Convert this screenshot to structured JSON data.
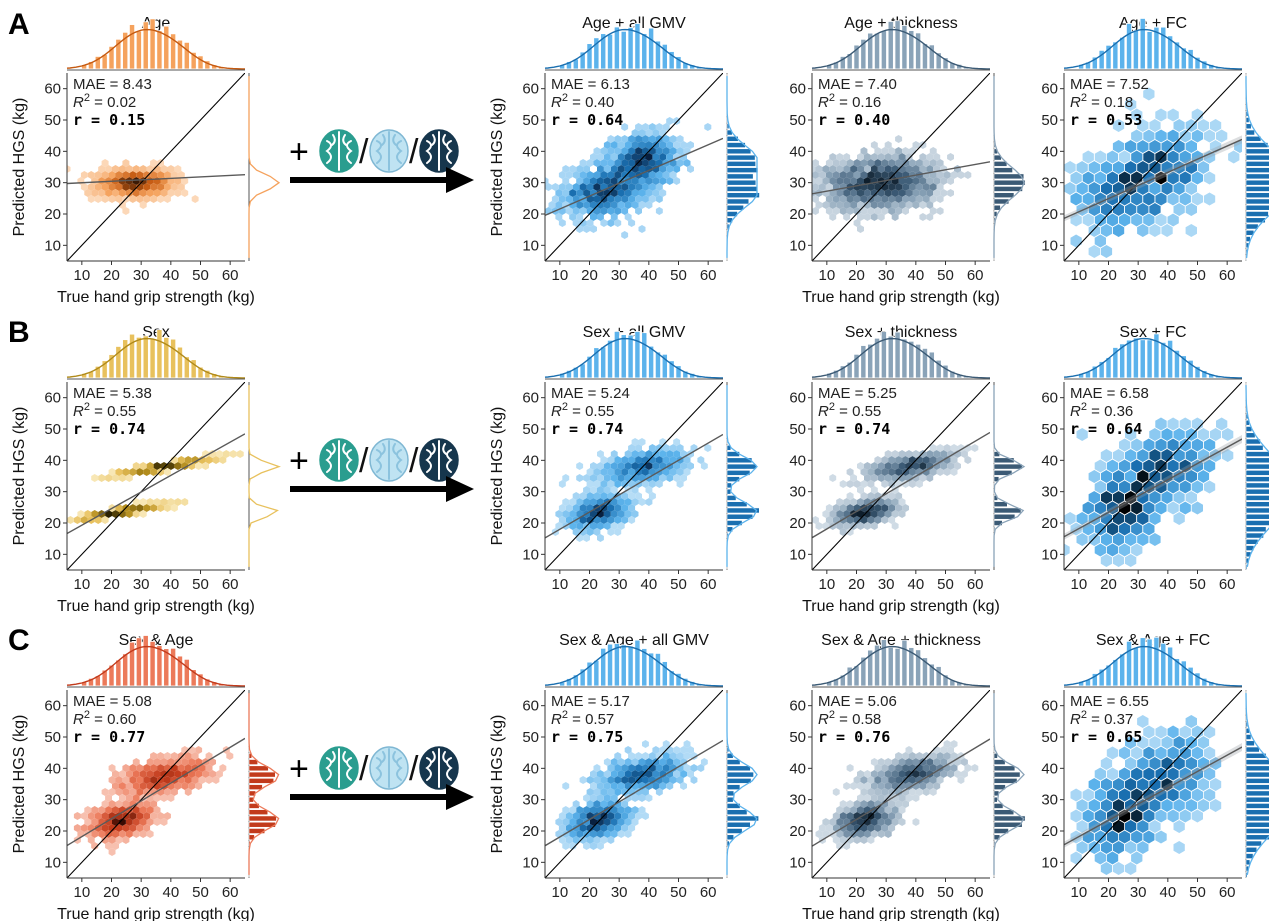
{
  "figure": {
    "panel_letters": [
      "A",
      "B",
      "C"
    ],
    "x_axis_label": "True hand grip strength (kg)",
    "y_axis_label": "Predicted HGS (kg)",
    "tick_values": [
      10,
      20,
      30,
      40,
      50,
      60
    ],
    "stat_labels": {
      "mae": "MAE = ",
      "r2_sym": "R",
      "r2_sup": "2",
      "r2_eq": " = ",
      "r": "r = "
    },
    "transition": {
      "plus": "+",
      "slash": "/"
    },
    "brain_icons": [
      "brain-icon-gmv",
      "brain-icon-thickness",
      "brain-icon-fc"
    ]
  },
  "chart_data": [
    {
      "type": "scatter",
      "title": "Age",
      "row": "A",
      "palette": "orange",
      "xlabel": "True hand grip strength (kg)",
      "ylabel": "Predicted HGS (kg)",
      "xlim": [
        5,
        65
      ],
      "ylim": [
        5,
        65
      ],
      "mae": "8.43",
      "r2": "0.02",
      "r": "0.15",
      "fit": {
        "slope": 0.047,
        "intercept": 29.5
      },
      "clusters": [
        [
          28,
          30,
          6,
          2
        ]
      ],
      "density": "tight",
      "colors": [
        "#fde4cc",
        "#f5a25d",
        "#c55a11",
        "#3b1a05"
      ]
    },
    {
      "type": "scatter",
      "title": "Age + all GMV",
      "row": "A",
      "palette": "blue",
      "xlabel": "",
      "ylabel": "Predicted HGS (kg)",
      "xlim": [
        5,
        65
      ],
      "ylim": [
        5,
        65
      ],
      "mae": "6.13",
      "r2": "0.40",
      "r": "0.64",
      "fit": {
        "slope": 0.41,
        "intercept": 17.5
      },
      "clusters": [
        [
          25,
          27,
          7,
          4
        ],
        [
          38,
          37,
          6,
          4
        ]
      ],
      "density": "hex",
      "colors": [
        "#d7ecfa",
        "#5cb3ec",
        "#1a6fb0",
        "#082040"
      ]
    },
    {
      "type": "scatter",
      "title": "Age + thickness",
      "row": "A",
      "palette": "navy",
      "xlabel": "True hand grip strength (kg)",
      "ylabel": "",
      "xlim": [
        5,
        65
      ],
      "ylim": [
        5,
        65
      ],
      "mae": "7.40",
      "r2": "0.16",
      "r": "0.40",
      "fit": {
        "slope": 0.17,
        "intercept": 25.6
      },
      "clusters": [
        [
          28,
          30,
          9,
          4
        ]
      ],
      "density": "hex",
      "colors": [
        "#e6edf3",
        "#8aa3b8",
        "#3b5a75",
        "#0e1e2c"
      ]
    },
    {
      "type": "scatter",
      "title": "Age + FC",
      "row": "A",
      "palette": "blue",
      "xlabel": "",
      "ylabel": "",
      "xlim": [
        5,
        65
      ],
      "ylim": [
        5,
        65
      ],
      "mae": "7.52",
      "r2": "0.18",
      "r": "0.53",
      "fit": {
        "slope": 0.42,
        "intercept": 16.5
      },
      "clusters": [
        [
          25,
          26,
          8,
          6
        ],
        [
          38,
          35,
          8,
          6
        ]
      ],
      "density": "hexbig",
      "colors": [
        "#d7ecfa",
        "#5cb3ec",
        "#1a6fb0",
        "#000000"
      ]
    },
    {
      "type": "scatter",
      "title": "Sex",
      "row": "B",
      "palette": "yellow",
      "xlabel": "True hand grip strength (kg)",
      "ylabel": "Predicted HGS (kg)",
      "xlim": [
        5,
        65
      ],
      "ylim": [
        5,
        65
      ],
      "mae": "5.38",
      "r2": "0.55",
      "r": "0.74",
      "fit": {
        "slope": 0.53,
        "intercept": 14.0
      },
      "clusters": [
        [
          23,
          23.5,
          7,
          0.4
        ],
        [
          38,
          38,
          8,
          0.4
        ]
      ],
      "density": "tight",
      "colors": [
        "#fbefc9",
        "#e8c15d",
        "#b08a1a",
        "#2b2100"
      ]
    },
    {
      "type": "scatter",
      "title": "Sex + all GMV",
      "row": "B",
      "palette": "blue",
      "xlabel": "",
      "ylabel": "Predicted HGS (kg)",
      "xlim": [
        5,
        65
      ],
      "ylim": [
        5,
        65
      ],
      "mae": "5.24",
      "r2": "0.55",
      "r": "0.74",
      "fit": {
        "slope": 0.55,
        "intercept": 12.5
      },
      "clusters": [
        [
          23,
          23.5,
          5,
          2.5
        ],
        [
          38,
          38,
          7,
          2.5
        ]
      ],
      "density": "hex",
      "colors": [
        "#d7ecfa",
        "#5cb3ec",
        "#1a6fb0",
        "#082040"
      ]
    },
    {
      "type": "scatter",
      "title": "Sex + thickness",
      "row": "B",
      "palette": "navy",
      "xlabel": "True hand grip strength (kg)",
      "ylabel": "",
      "xlim": [
        5,
        65
      ],
      "ylim": [
        5,
        65
      ],
      "mae": "5.25",
      "r2": "0.55",
      "r": "0.74",
      "fit": {
        "slope": 0.56,
        "intercept": 12.5
      },
      "clusters": [
        [
          23,
          23.5,
          5,
          1.8
        ],
        [
          38,
          38,
          7,
          1.8
        ]
      ],
      "density": "hex",
      "colors": [
        "#e6edf3",
        "#8aa3b8",
        "#3b5a75",
        "#0e1e2c"
      ]
    },
    {
      "type": "scatter",
      "title": "Sex + FC",
      "row": "B",
      "palette": "blue",
      "xlabel": "",
      "ylabel": "",
      "xlim": [
        5,
        65
      ],
      "ylim": [
        5,
        65
      ],
      "mae": "6.58",
      "r2": "0.36",
      "r": "0.64",
      "fit": {
        "slope": 0.52,
        "intercept": 13.0
      },
      "clusters": [
        [
          24,
          24,
          6,
          6
        ],
        [
          38,
          37,
          8,
          6
        ]
      ],
      "density": "hexbig",
      "colors": [
        "#d7ecfa",
        "#5cb3ec",
        "#1a6fb0",
        "#000000"
      ]
    },
    {
      "type": "scatter",
      "title": "Sex & Age",
      "row": "C",
      "palette": "red",
      "xlabel": "True hand grip strength (kg)",
      "ylabel": "Predicted HGS (kg)",
      "xlim": [
        5,
        65
      ],
      "ylim": [
        5,
        65
      ],
      "mae": "5.08",
      "r2": "0.60",
      "r": "0.77",
      "fit": {
        "slope": 0.57,
        "intercept": 12.5
      },
      "clusters": [
        [
          23,
          23.5,
          5,
          2.5
        ],
        [
          38,
          37.5,
          7,
          2.5
        ]
      ],
      "density": "tight",
      "colors": [
        "#fbd9ce",
        "#ec7a5a",
        "#c23b1c",
        "#3a0a02"
      ]
    },
    {
      "type": "scatter",
      "title": "Sex & Age + all GMV",
      "row": "C",
      "palette": "blue",
      "xlabel": "",
      "ylabel": "Predicted HGS (kg)",
      "xlim": [
        5,
        65
      ],
      "ylim": [
        5,
        65
      ],
      "mae": "5.17",
      "r2": "0.57",
      "r": "0.75",
      "fit": {
        "slope": 0.56,
        "intercept": 12.5
      },
      "clusters": [
        [
          23,
          23.5,
          5,
          2.8
        ],
        [
          38,
          38,
          7,
          2.8
        ]
      ],
      "density": "hex",
      "colors": [
        "#d7ecfa",
        "#5cb3ec",
        "#1a6fb0",
        "#082040"
      ]
    },
    {
      "type": "scatter",
      "title": "Sex & Age + thickness",
      "row": "C",
      "palette": "navy",
      "xlabel": "True hand grip strength (kg)",
      "ylabel": "",
      "xlim": [
        5,
        65
      ],
      "ylim": [
        5,
        65
      ],
      "mae": "5.06",
      "r2": "0.58",
      "r": "0.76",
      "fit": {
        "slope": 0.57,
        "intercept": 12.3
      },
      "clusters": [
        [
          23,
          23.5,
          5,
          2.5
        ],
        [
          38,
          38,
          7,
          2.5
        ]
      ],
      "density": "hex",
      "colors": [
        "#e6edf3",
        "#8aa3b8",
        "#3b5a75",
        "#0e1e2c"
      ]
    },
    {
      "type": "scatter",
      "title": "Sex & Age + FC",
      "row": "C",
      "palette": "blue",
      "xlabel": "",
      "ylabel": "",
      "xlim": [
        5,
        65
      ],
      "ylim": [
        5,
        65
      ],
      "mae": "6.55",
      "r2": "0.37",
      "r": "0.65",
      "fit": {
        "slope": 0.52,
        "intercept": 13.0
      },
      "clusters": [
        [
          24,
          24,
          6,
          6
        ],
        [
          38,
          37,
          8,
          6
        ]
      ],
      "density": "hexbig",
      "colors": [
        "#d7ecfa",
        "#5cb3ec",
        "#1a6fb0",
        "#000000"
      ]
    }
  ]
}
